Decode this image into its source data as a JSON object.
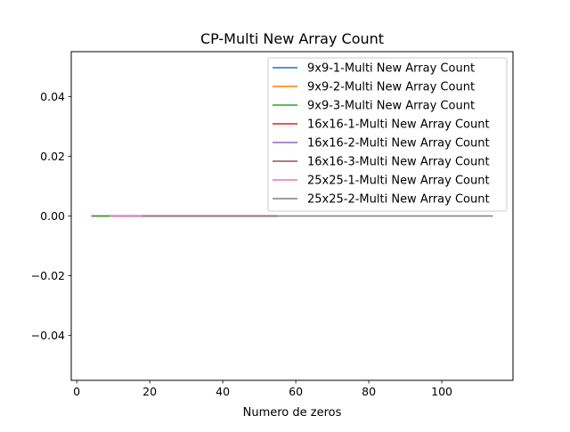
{
  "chart_data": {
    "type": "line",
    "title": "CP-Multi New Array Count",
    "xlabel": "Numero de zeros",
    "ylabel": "",
    "xlim": [
      -1.5,
      119.5
    ],
    "ylim": [
      -0.055,
      0.055
    ],
    "xticks": [
      0,
      20,
      40,
      60,
      80,
      100
    ],
    "yticks": [
      -0.04,
      -0.02,
      0.0,
      0.02,
      0.04
    ],
    "xtick_labels": [
      "0",
      "20",
      "40",
      "60",
      "80",
      "100"
    ],
    "ytick_labels": [
      "−0.04",
      "−0.02",
      "0.00",
      "0.02",
      "0.04"
    ],
    "grid": false,
    "legend_position": "top-right",
    "series": [
      {
        "name": "9x9-1-Multi New Array Count",
        "color": "#1f77b4",
        "x": [
          4,
          9
        ],
        "y": [
          0,
          0
        ]
      },
      {
        "name": "9x9-2-Multi New Array Count",
        "color": "#ff7f0e",
        "x": [
          4,
          9
        ],
        "y": [
          0,
          0
        ]
      },
      {
        "name": "9x9-3-Multi New Array Count",
        "color": "#2ca02c",
        "x": [
          4,
          9
        ],
        "y": [
          0,
          0
        ]
      },
      {
        "name": "16x16-1-Multi New Array Count",
        "color": "#d62728",
        "x": [
          9,
          55
        ],
        "y": [
          0,
          0
        ]
      },
      {
        "name": "16x16-2-Multi New Array Count",
        "color": "#9467bd",
        "x": [
          9,
          55
        ],
        "y": [
          0,
          0
        ]
      },
      {
        "name": "16x16-3-Multi New Array Count",
        "color": "#8c564b",
        "x": [
          9,
          55
        ],
        "y": [
          0,
          0
        ]
      },
      {
        "name": "25x25-1-Multi New Array Count",
        "color": "#e377c2",
        "x": [
          9,
          18
        ],
        "y": [
          0,
          0
        ]
      },
      {
        "name": "25x25-2-Multi New Array Count",
        "color": "#7f7f7f",
        "x": [
          18,
          114
        ],
        "y": [
          0,
          0
        ]
      }
    ]
  }
}
